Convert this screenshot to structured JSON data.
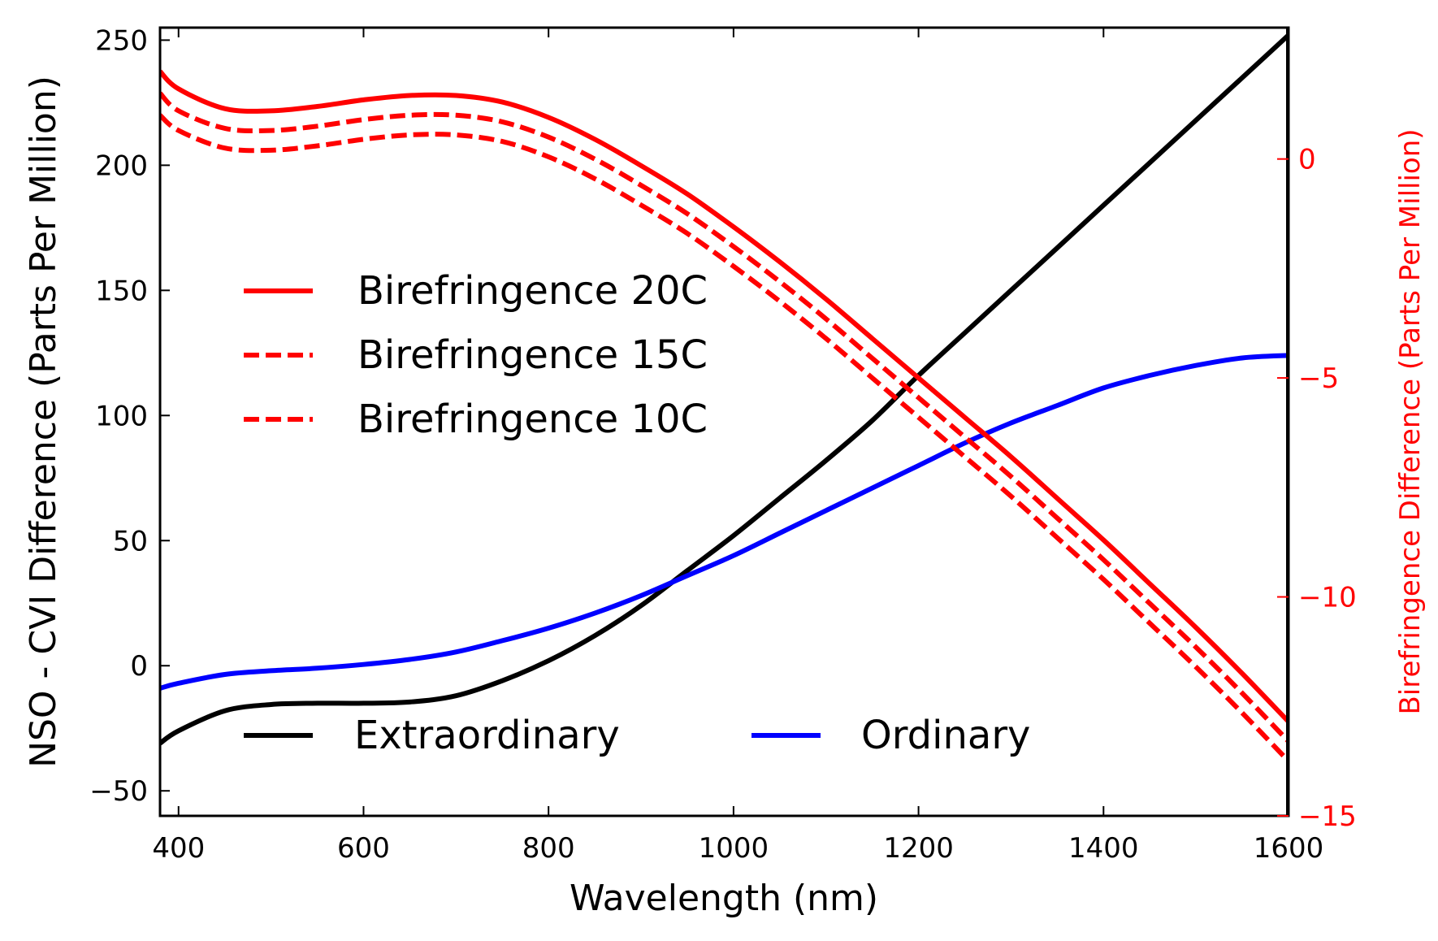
{
  "chart_data": {
    "type": "line",
    "xlabel": "Wavelength (nm)",
    "ylabel_left": "NSO - CVI Difference (Parts Per Million)",
    "ylabel_right": "Birefringence Difference (Parts Per Million)",
    "xlim": [
      380,
      1600
    ],
    "ylim_left": [
      -60,
      255
    ],
    "ylim_right": [
      -15,
      3
    ],
    "x_ticks": [
      400,
      600,
      800,
      1000,
      1200,
      1400,
      1600
    ],
    "x_tick_labels": [
      "400",
      "600",
      "800",
      "1000",
      "1200",
      "1400",
      "1600"
    ],
    "y_left_ticks": [
      -50,
      0,
      50,
      100,
      150,
      200,
      250
    ],
    "y_left_tick_labels": [
      "−50",
      "0",
      "50",
      "100",
      "150",
      "200",
      "250"
    ],
    "y_right_ticks": [
      -15,
      -10,
      -5,
      0
    ],
    "y_right_tick_labels": [
      "−15",
      "−10",
      "−5",
      "0"
    ],
    "colors": {
      "axis": "#000000",
      "right_axis": "#ff0000",
      "extraordinary": "#000000",
      "ordinary": "#0000ff",
      "birefringence": "#ff0000"
    },
    "series": [
      {
        "name": "Extraordinary",
        "axis": "left",
        "color": "#000000",
        "dash": "solid",
        "x": [
          380,
          400,
          450,
          500,
          550,
          600,
          650,
          700,
          750,
          800,
          850,
          900,
          950,
          1000,
          1050,
          1100,
          1150,
          1200,
          1250,
          1300,
          1350,
          1400,
          1450,
          1500,
          1550,
          1600
        ],
        "y": [
          -31,
          -26,
          -18,
          -15.5,
          -15,
          -15,
          -14.5,
          -12,
          -6,
          2,
          12,
          24,
          38,
          52,
          67,
          82,
          98,
          116,
          133,
          150,
          167,
          184,
          201,
          218,
          235,
          252
        ]
      },
      {
        "name": "Ordinary",
        "axis": "left",
        "color": "#0000ff",
        "dash": "solid",
        "x": [
          380,
          400,
          450,
          500,
          550,
          600,
          650,
          700,
          750,
          800,
          850,
          900,
          950,
          1000,
          1050,
          1100,
          1150,
          1200,
          1250,
          1300,
          1350,
          1400,
          1450,
          1500,
          1550,
          1600
        ],
        "y": [
          -9,
          -7,
          -3.5,
          -2,
          -1,
          0.5,
          2.5,
          5.5,
          10,
          15,
          21,
          28,
          36,
          44,
          53,
          62,
          71,
          80,
          89,
          97,
          104,
          111,
          116,
          120,
          123,
          124
        ]
      },
      {
        "name": "Birefringence 20C",
        "axis": "right",
        "color": "#ff0000",
        "dash": "solid",
        "x": [
          380,
          400,
          450,
          500,
          550,
          600,
          650,
          700,
          750,
          800,
          850,
          900,
          950,
          1000,
          1050,
          1100,
          1150,
          1200,
          1250,
          1300,
          1350,
          1400,
          1450,
          1500,
          1550,
          1600
        ],
        "y": [
          2.0,
          1.6,
          1.15,
          1.1,
          1.2,
          1.35,
          1.45,
          1.45,
          1.3,
          0.95,
          0.45,
          -0.15,
          -0.8,
          -1.55,
          -2.35,
          -3.2,
          -4.1,
          -5.0,
          -5.9,
          -6.8,
          -7.75,
          -8.7,
          -9.7,
          -10.7,
          -11.75,
          -12.85
        ]
      },
      {
        "name": "Birefringence 15C",
        "axis": "right",
        "color": "#ff0000",
        "dash": "dashed",
        "x": [
          380,
          400,
          450,
          500,
          550,
          600,
          650,
          700,
          750,
          800,
          850,
          900,
          950,
          1000,
          1050,
          1100,
          1150,
          1200,
          1250,
          1300,
          1350,
          1400,
          1450,
          1500,
          1550,
          1600
        ],
        "y": [
          1.5,
          1.1,
          0.7,
          0.65,
          0.75,
          0.9,
          1.0,
          1.0,
          0.85,
          0.5,
          0.0,
          -0.6,
          -1.25,
          -2.0,
          -2.8,
          -3.65,
          -4.55,
          -5.45,
          -6.35,
          -7.25,
          -8.2,
          -9.15,
          -10.15,
          -11.15,
          -12.2,
          -13.3
        ]
      },
      {
        "name": "Birefringence 10C",
        "axis": "right",
        "color": "#ff0000",
        "dash": "dashed",
        "x": [
          380,
          400,
          450,
          500,
          550,
          600,
          650,
          700,
          750,
          800,
          850,
          900,
          950,
          1000,
          1050,
          1100,
          1150,
          1200,
          1250,
          1300,
          1350,
          1400,
          1450,
          1500,
          1550,
          1600
        ],
        "y": [
          1.0,
          0.65,
          0.25,
          0.2,
          0.3,
          0.45,
          0.55,
          0.55,
          0.4,
          0.05,
          -0.45,
          -1.05,
          -1.7,
          -2.45,
          -3.25,
          -4.1,
          -5.0,
          -5.9,
          -6.8,
          -7.7,
          -8.65,
          -9.6,
          -10.6,
          -11.6,
          -12.65,
          -13.75
        ]
      }
    ],
    "legends": [
      {
        "placement": "center-left",
        "entries": [
          {
            "label": "Birefringence 20C",
            "series": "Birefringence 20C"
          },
          {
            "label": "Birefringence 15C",
            "series": "Birefringence 15C"
          },
          {
            "label": "Birefringence 10C",
            "series": "Birefringence 10C"
          }
        ]
      },
      {
        "placement": "lower-center",
        "entries": [
          {
            "label": "Extraordinary",
            "series": "Extraordinary"
          },
          {
            "label": "Ordinary",
            "series": "Ordinary"
          }
        ]
      }
    ]
  }
}
